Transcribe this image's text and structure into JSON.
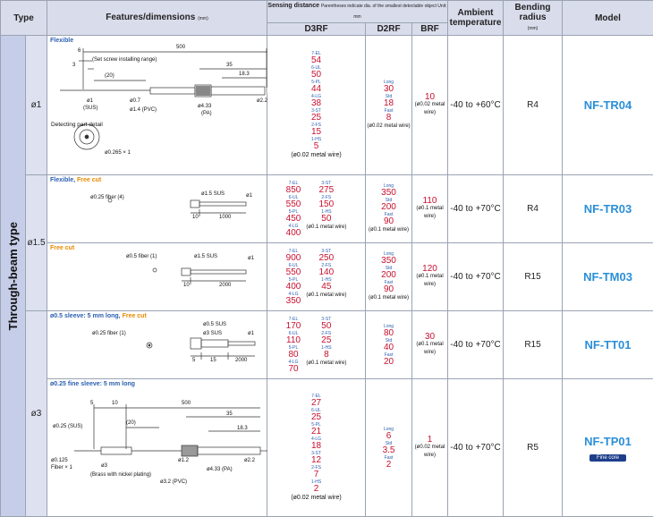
{
  "header": {
    "type": "Type",
    "features": "Features/dimensions",
    "features_unit": "(mm)",
    "sensing": "Sensing distance",
    "sensing_note": "Parentheses indicate dia. of the smallest detectable object Unit: mm",
    "d3rf": "D3RF",
    "d2rf": "D2RF",
    "brf": "BRF",
    "ambient": "Ambient temperature",
    "bending": "Bending radius",
    "bending_unit": "(mm)",
    "model": "Model"
  },
  "type_label": "Through-beam type",
  "rows": [
    {
      "dia": "ø1",
      "title": "Flexible",
      "d3rf": [
        [
          "7-EL",
          "54"
        ],
        [
          "6-UL",
          "50"
        ],
        [
          "5-PL",
          "44"
        ],
        [
          "4-LG",
          "38"
        ],
        [
          "3-ST",
          "25"
        ],
        [
          "2-FS",
          "15"
        ],
        [
          "1-HS",
          "5"
        ]
      ],
      "d3rf_note": "(ø0.02 metal wire)",
      "d2rf": [
        [
          "Long",
          "30"
        ],
        [
          "Std",
          "18"
        ],
        [
          "Fast",
          "8"
        ]
      ],
      "d2rf_note": "(ø0.02 metal wire)",
      "brf": "10",
      "brf_note": "(ø0.02 metal wire)",
      "ambient": "-40 to +60°C",
      "bending": "R4",
      "model": "NF-TR04",
      "labels": {
        "d6": "6",
        "d3": "3",
        "d500": "500",
        "set": "(Set screw installing range)",
        "d20": "(20)",
        "d35": "35",
        "d183": "18.3",
        "d1sus": "ø1",
        "sus": "(SUS)",
        "d07": "ø0.7",
        "d14": "ø1.4 (PVC)",
        "d433": "ø4.33",
        "pa": "(PA)",
        "d22": "ø2.2",
        "detect": "Detecting part detail",
        "d0265": "ø0.265 × 1"
      }
    },
    {
      "dia_group": "ø1.5",
      "title": "Flexible,",
      "title_orange": "Free cut",
      "d3rf_a": [
        [
          "7-EL",
          "850"
        ],
        [
          "6-UL",
          "550"
        ],
        [
          "5-PL",
          "450"
        ],
        [
          "4-LG",
          "400"
        ]
      ],
      "d3rf_b": [
        [
          "3-ST",
          "275"
        ],
        [
          "2-FS",
          "150"
        ],
        [
          "1-HS",
          "50"
        ]
      ],
      "d3rf_note": "(ø0.1 metal wire)",
      "d2rf": [
        [
          "Long",
          "350"
        ],
        [
          "Std",
          "200"
        ],
        [
          "Fast",
          "90"
        ]
      ],
      "d2rf_note": "(ø0.1 metal wire)",
      "brf": "110",
      "brf_note": "(ø0.1 metal wire)",
      "ambient": "-40 to +70°C",
      "bending": "R4",
      "model": "NF-TR03",
      "labels": {
        "fiber": "ø0.25 fiber (4)",
        "sus": "ø1.5 SUS",
        "d1": "ø1",
        "d10": "10",
        "d1000": "1000"
      }
    },
    {
      "title_orange": "Free cut",
      "d3rf_a": [
        [
          "7-EL",
          "900"
        ],
        [
          "6-UL",
          "550"
        ],
        [
          "5-PL",
          "400"
        ],
        [
          "4-LG",
          "350"
        ]
      ],
      "d3rf_b": [
        [
          "3-ST",
          "250"
        ],
        [
          "2-FS",
          "140"
        ],
        [
          "1-HS",
          "45"
        ]
      ],
      "d3rf_note": "(ø0.1 metal wire)",
      "d2rf": [
        [
          "Long",
          "350"
        ],
        [
          "Std",
          "200"
        ],
        [
          "Fast",
          "90"
        ]
      ],
      "d2rf_note": "(ø0.1 metal wire)",
      "brf": "120",
      "brf_note": "(ø0.1 metal wire)",
      "ambient": "-40 to +70°C",
      "bending": "R15",
      "model": "NF-TM03",
      "labels": {
        "fiber": "ø0.5 fiber (1)",
        "sus": "ø1.5 SUS",
        "d1": "ø1",
        "d10": "10",
        "d2000": "2000"
      }
    },
    {
      "dia_group": "ø3",
      "title": "ø0.5 sleeve: 5 mm long,",
      "title_orange": "Free cut",
      "d3rf_a": [
        [
          "7-EL",
          "170"
        ],
        [
          "6-UL",
          "110"
        ],
        [
          "5-PL",
          "80"
        ],
        [
          "4-LG",
          "70"
        ]
      ],
      "d3rf_b": [
        [
          "3-ST",
          "50"
        ],
        [
          "2-FS",
          "25"
        ],
        [
          "1-HS",
          "8"
        ]
      ],
      "d3rf_note": "(ø0.1 metal wire)",
      "d2rf": [
        [
          "Long",
          "80"
        ],
        [
          "Std",
          "40"
        ],
        [
          "Fast",
          "20"
        ]
      ],
      "d2rf_note": "",
      "brf": "30",
      "brf_note": "(ø0.1 metal wire)",
      "ambient": "-40 to +70°C",
      "bending": "R15",
      "model": "NF-TT01",
      "labels": {
        "fiber": "ø0.25 fiber (1)",
        "d05": "ø0.5 SUS",
        "d3sus": "ø3 SUS",
        "d1": "ø1",
        "d5": "5",
        "d15": "15",
        "d2000": "2000"
      }
    },
    {
      "title": "ø0.25 fine sleeve: 5 mm long",
      "d3rf": [
        [
          "7-EL",
          "27"
        ],
        [
          "6-UL",
          "25"
        ],
        [
          "5-PL",
          "21"
        ],
        [
          "4-LG",
          "18"
        ],
        [
          "3-ST",
          "12"
        ],
        [
          "2-FS",
          "7"
        ],
        [
          "1-HS",
          "2"
        ]
      ],
      "d3rf_note": "(ø0.02 metal wire)",
      "d2rf": [
        [
          "Long",
          "6"
        ],
        [
          "Std",
          "3.5"
        ],
        [
          "Fast",
          "2"
        ]
      ],
      "d2rf_note": "",
      "brf": "1",
      "brf_note": "(ø0.02 metal wire)",
      "ambient": "-40 to +70°C",
      "bending": "R5",
      "model": "NF-TP01",
      "badge": "Fine core",
      "labels": {
        "d5": "5",
        "d10": "10",
        "d500": "500",
        "d20": "(20)",
        "d35": "35",
        "d183": "18.3",
        "d025": "ø0.25 (SUS)",
        "d0125": "ø0.125",
        "fiber1": "Fiber × 1",
        "d3": "ø3",
        "brass": "(Brass with nickel plating)",
        "d12": "ø1.2",
        "d32": "ø3.2 (PVC)",
        "d433": "ø4.33 (PA)",
        "d22": "ø2.2"
      }
    }
  ]
}
